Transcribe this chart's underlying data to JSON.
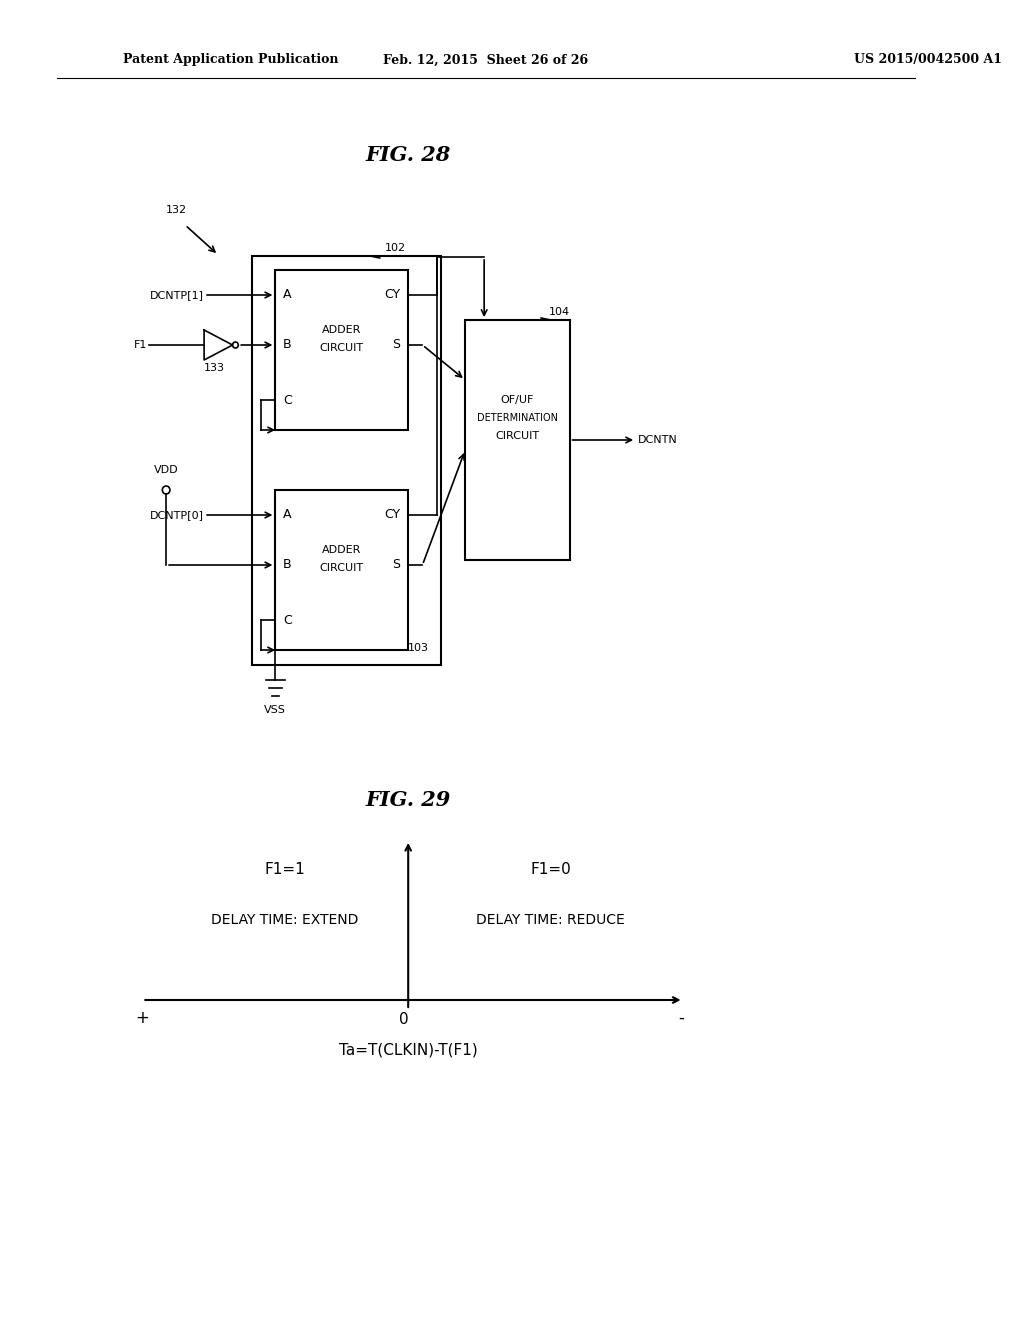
{
  "bg_color": "#ffffff",
  "header_left": "Patent Application Publication",
  "header_mid": "Feb. 12, 2015  Sheet 26 of 26",
  "header_right": "US 2015/0042500 A1",
  "fig28_title": "FIG. 28",
  "fig29_title": "FIG. 29",
  "label_132": "132",
  "label_133": "133",
  "label_102": "102",
  "label_103": "103",
  "label_104": "104",
  "adder1_lines": [
    "A        CY",
    "ADDER",
    "CIRCUIT  S",
    "C"
  ],
  "adder2_lines": [
    "A        CY",
    "ADDER",
    "CIRCUIT  S",
    "C"
  ],
  "oruf_lines": [
    "OF/UF",
    "DETERMINATION",
    "CIRCUIT"
  ],
  "signal_DCNTP1": "DCNTP[1]",
  "signal_F1": "F1",
  "signal_VDD": "VDD",
  "signal_DCNTP0": "DCNTP[0]",
  "signal_VSS": "VSS",
  "signal_DCNTN": "DCNTN",
  "fig29_F1_1": "F1=1",
  "fig29_F1_0": "F1=0",
  "fig29_delay_extend": "DELAY TIME: EXTEND",
  "fig29_delay_reduce": "DELAY TIME: REDUCE",
  "fig29_plus": "+",
  "fig29_minus": "-",
  "fig29_zero": "0",
  "fig29_xlabel": "Ta=T(CLKIN)-T(F1)"
}
